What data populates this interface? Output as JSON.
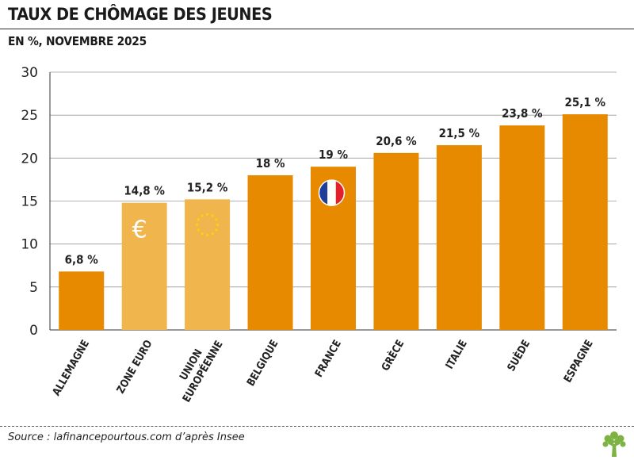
{
  "header": {
    "title": "TAUX DE CHÔMAGE DES JEUNES",
    "subtitle": "EN %, NOVEMBRE 2025"
  },
  "footer": {
    "source": "Source : lafinancepourtous.com d’après Insee"
  },
  "colors": {
    "bar_primary": "#e88a00",
    "bar_aggregate": "#f0b54d",
    "flag_blue": "#1f3f9a",
    "flag_red": "#e1202c",
    "eu_star": "#f5d40f",
    "logo_green": "#7cb342"
  },
  "icons": {
    "euro": "€",
    "eu_stars": "eu-stars-icon",
    "france_flag": "france-flag-icon",
    "logo": "tree-logo-icon"
  },
  "chart_data": {
    "type": "bar",
    "categories": [
      "ALLEMAGNE",
      "ZONE EURO",
      "UNION EUROPÉENNE",
      "BELGIQUE",
      "FRANCE",
      "GRÈCE",
      "ITALIE",
      "SUÈDE",
      "ESPAGNE"
    ],
    "category_lines": [
      [
        "ALLEMAGNE"
      ],
      [
        "ZONE EURO"
      ],
      [
        "UNION",
        "EUROPÉENNE"
      ],
      [
        "BELGIQUE"
      ],
      [
        "FRANCE"
      ],
      [
        "GRÈCE"
      ],
      [
        "ITALIE"
      ],
      [
        "SUÈDE"
      ],
      [
        "ESPAGNE"
      ]
    ],
    "values": [
      6.8,
      14.8,
      15.2,
      18,
      19,
      20.6,
      21.5,
      23.8,
      25.1
    ],
    "data_labels": [
      "6,8 %",
      "14,8 %",
      "15,2 %",
      "18 %",
      "19 %",
      "20,6 %",
      "21,5 %",
      "23,8 %",
      "25,1 %"
    ],
    "aggregate": [
      false,
      true,
      true,
      false,
      false,
      false,
      false,
      false,
      false
    ],
    "bar_icons": [
      "",
      "euro",
      "eu_stars",
      "",
      "france_flag",
      "",
      "",
      "",
      ""
    ],
    "ylim": [
      0,
      30
    ],
    "yticks": [
      0,
      5,
      10,
      15,
      20,
      25,
      30
    ],
    "grid": true,
    "xlabel": "",
    "ylabel": ""
  }
}
